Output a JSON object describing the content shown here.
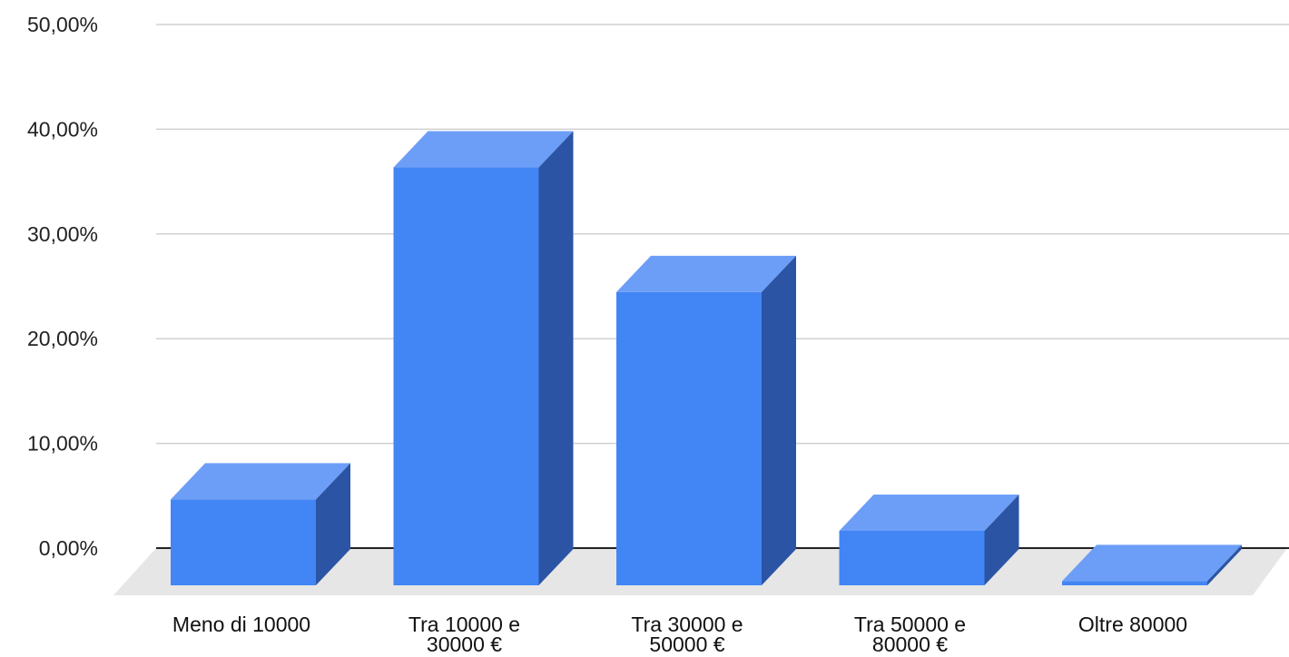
{
  "chart_data": {
    "type": "bar",
    "style": "3d",
    "categories": [
      "Meno di 10000",
      "Tra 10000 e 30000 €",
      "Tra 30000 e 50000 €",
      "Tra 50000 e 80000 €",
      "Oltre 80000"
    ],
    "category_label_lines": [
      [
        "Meno di 10000"
      ],
      [
        "Tra 10000 e",
        "30000 €"
      ],
      [
        "Tra 30000 e",
        "50000 €"
      ],
      [
        "Tra 50000 e",
        "80000 €"
      ],
      [
        "Oltre 80000"
      ]
    ],
    "values": [
      8.2,
      39.9,
      28.0,
      5.2,
      0.4
    ],
    "value_unit": "%",
    "yticks": [
      "0,00%",
      "10,00%",
      "20,00%",
      "30,00%",
      "40,00%",
      "50,00%"
    ],
    "ylim": [
      0,
      50
    ],
    "title": "",
    "xlabel": "",
    "ylabel": "",
    "grid": true,
    "legend": "none",
    "colors": {
      "bar_front": "#4285f4",
      "bar_top": "#6d9ef7",
      "bar_side": "#2b54a4",
      "floor": "#e6e6e6",
      "grid": "#d0d0d0",
      "baseline": "#222222"
    }
  }
}
